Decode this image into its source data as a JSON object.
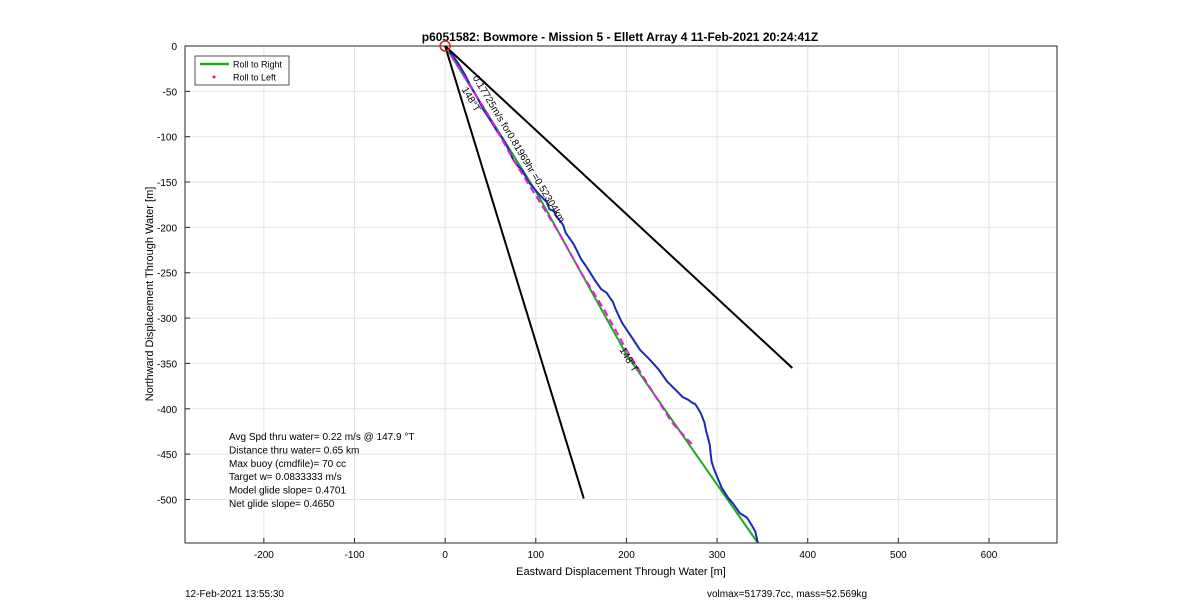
{
  "chart_data": {
    "type": "line",
    "title": "p6051582: Bowmore - Mission 5 - Ellett Array 4 11-Feb-2021 20:24:41Z",
    "xlabel": "Eastward Displacement Through Water [m]",
    "ylabel": "Northward Displacement Through Water [m]",
    "xlim": [
      -287,
      675
    ],
    "ylim": [
      -548,
      0
    ],
    "xticks": [
      -200,
      -100,
      0,
      100,
      200,
      300,
      400,
      500,
      600
    ],
    "yticks": [
      0,
      -50,
      -100,
      -150,
      -200,
      -250,
      -300,
      -350,
      -400,
      -450,
      -500
    ],
    "grid": true,
    "legend_position": "top-left",
    "legend": [
      {
        "label": "Roll to Right",
        "color": "#1faa1f",
        "style": "line"
      },
      {
        "label": "Roll to Left",
        "color": "#e0202a",
        "style": "dot"
      }
    ],
    "series": [
      {
        "name": "Roll to Right",
        "color": "#1faa1f",
        "x": [
          0,
          100,
          200,
          280,
          345
        ],
        "y": [
          0,
          -160,
          -340,
          -455,
          -548
        ]
      },
      {
        "color": "#1a2ab4",
        "x": [
          0,
          8,
          15,
          22,
          28,
          35,
          42,
          50,
          58,
          62,
          68,
          75,
          80,
          85,
          92,
          98,
          105,
          112,
          115,
          120,
          122,
          126,
          130,
          133,
          138,
          142,
          150,
          155,
          160,
          165,
          172,
          178,
          185,
          188,
          195,
          205,
          215,
          225,
          235,
          245,
          255,
          262,
          268,
          272,
          276,
          278,
          282,
          286,
          288,
          290,
          292,
          293,
          294,
          296,
          300,
          303,
          305,
          309,
          312,
          318,
          325,
          333,
          338,
          342,
          345
        ],
        "y": [
          0,
          -10,
          -20,
          -32,
          -44,
          -56,
          -70,
          -82,
          -95,
          -100,
          -110,
          -125,
          -132,
          -137,
          -150,
          -157,
          -165,
          -172,
          -180,
          -182,
          -187,
          -192,
          -197,
          -206,
          -213,
          -219,
          -235,
          -242,
          -250,
          -258,
          -268,
          -272,
          -282,
          -290,
          -305,
          -320,
          -335,
          -345,
          -356,
          -370,
          -380,
          -387,
          -390,
          -393,
          -395,
          -398,
          -405,
          -415,
          -425,
          -432,
          -440,
          -450,
          -458,
          -465,
          -475,
          -482,
          -487,
          -493,
          -498,
          -505,
          -515,
          -520,
          -528,
          -535,
          -548
        ]
      },
      {
        "color": "#e616e6",
        "style": "dashed",
        "x": [
          0,
          25,
          50,
          75,
          100,
          125,
          150,
          175,
          200,
          225,
          250,
          275
        ],
        "y": [
          0,
          -40,
          -80,
          -125,
          -165,
          -205,
          -250,
          -290,
          -335,
          -375,
          -415,
          -442
        ]
      },
      {
        "color": "#000000",
        "x": [
          0,
          383
        ],
        "y": [
          0,
          -355
        ]
      },
      {
        "color": "#000000",
        "x": [
          0,
          153
        ],
        "y": [
          0,
          -499
        ]
      }
    ],
    "start_marker": {
      "x": 0,
      "y": 0,
      "color": "#e0202a"
    },
    "annotations": [
      {
        "text": "0.17725m/s for0.81969hr =0.52304km",
        "x": 30,
        "y": -35,
        "angle": 59
      },
      {
        "text": "148°T",
        "x": 18,
        "y": -48,
        "angle": 59
      },
      {
        "text": "148°T",
        "x": 192,
        "y": -335,
        "angle": 59
      }
    ],
    "stats_lines": [
      "Avg Spd thru water=  0.22 m/s @ 147.9 °T",
      "Distance thru water=  0.65 km",
      "Max buoy (cmdfile)= 70 cc",
      "Target w= 0.0833333 m/s",
      "Model glide slope= 0.4701",
      "Net glide slope= 0.4650"
    ]
  },
  "footer": {
    "timestamp": "12-Feb-2021 13:55:30",
    "info": "volmax=51739.7cc, mass=52.569kg"
  }
}
